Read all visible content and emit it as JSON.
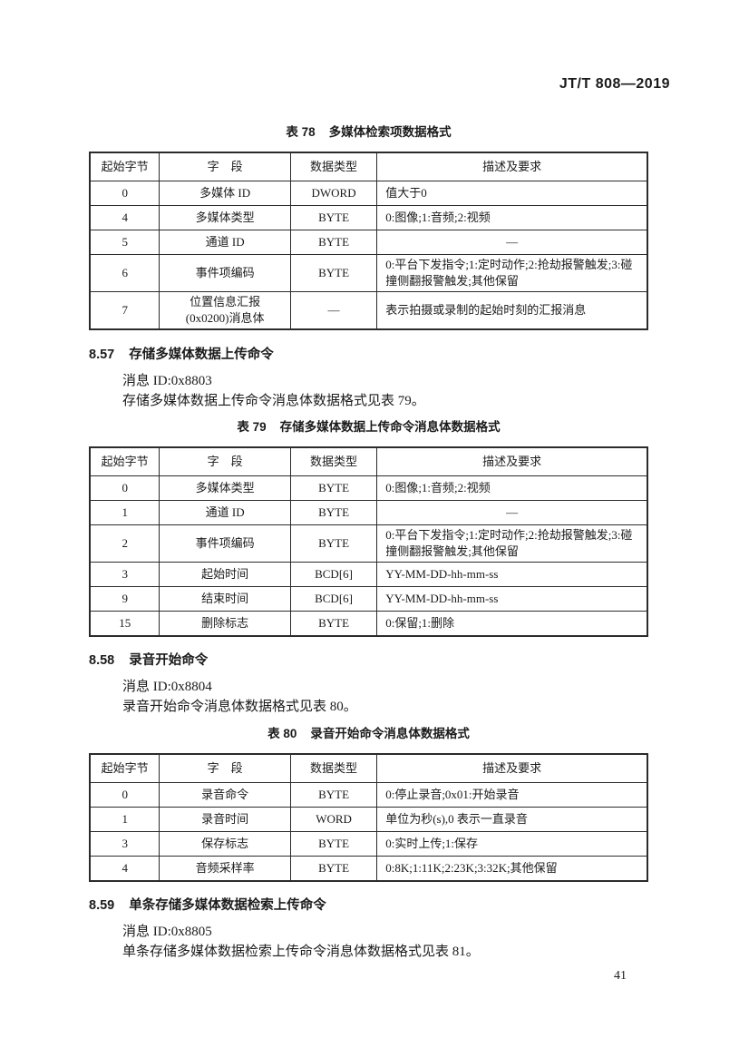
{
  "doc_header": "JT/T 808—2019",
  "page_number": "41",
  "table78": {
    "label": "表 78",
    "title": "多媒体检索项数据格式",
    "headers": [
      "起始字节",
      "字　段",
      "数据类型",
      "描述及要求"
    ],
    "rows": [
      [
        "0",
        "多媒体 ID",
        "DWORD",
        "值大于0"
      ],
      [
        "4",
        "多媒体类型",
        "BYTE",
        "0:图像;1:音频;2:视频"
      ],
      [
        "5",
        "通道 ID",
        "BYTE",
        "—"
      ],
      [
        "6",
        "事件项编码",
        "BYTE",
        "0:平台下发指令;1:定时动作;2:抢劫报警触发;3:碰撞侧翻报警触发;其他保留"
      ],
      [
        "7",
        "位置信息汇报\n(0x0200)消息体",
        "—",
        "表示拍摄或录制的起始时刻的汇报消息"
      ]
    ]
  },
  "sec857": {
    "number": "8.57",
    "title": "存储多媒体数据上传命令",
    "paragraphs": [
      "消息 ID:0x8803",
      "存储多媒体数据上传命令消息体数据格式见表 79。"
    ]
  },
  "table79": {
    "label": "表 79",
    "title": "存储多媒体数据上传命令消息体数据格式",
    "headers": [
      "起始字节",
      "字　段",
      "数据类型",
      "描述及要求"
    ],
    "rows": [
      [
        "0",
        "多媒体类型",
        "BYTE",
        "0:图像;1:音频;2:视频"
      ],
      [
        "1",
        "通道 ID",
        "BYTE",
        "—"
      ],
      [
        "2",
        "事件项编码",
        "BYTE",
        "0:平台下发指令;1:定时动作;2:抢劫报警触发;3:碰撞侧翻报警触发;其他保留"
      ],
      [
        "3",
        "起始时间",
        "BCD[6]",
        "YY-MM-DD-hh-mm-ss"
      ],
      [
        "9",
        "结束时间",
        "BCD[6]",
        "YY-MM-DD-hh-mm-ss"
      ],
      [
        "15",
        "删除标志",
        "BYTE",
        "0:保留;1:删除"
      ]
    ]
  },
  "sec858": {
    "number": "8.58",
    "title": "录音开始命令",
    "paragraphs": [
      "消息 ID:0x8804",
      "录音开始命令消息体数据格式见表 80。"
    ]
  },
  "table80": {
    "label": "表 80",
    "title": "录音开始命令消息体数据格式",
    "headers": [
      "起始字节",
      "字　段",
      "数据类型",
      "描述及要求"
    ],
    "rows": [
      [
        "0",
        "录音命令",
        "BYTE",
        "0:停止录音;0x01:开始录音"
      ],
      [
        "1",
        "录音时间",
        "WORD",
        "单位为秒(s),0 表示一直录音"
      ],
      [
        "3",
        "保存标志",
        "BYTE",
        "0:实时上传;1:保存"
      ],
      [
        "4",
        "音频采样率",
        "BYTE",
        "0:8K;1:11K;2:23K;3:32K;其他保留"
      ]
    ]
  },
  "sec859": {
    "number": "8.59",
    "title": "单条存储多媒体数据检索上传命令",
    "paragraphs": [
      "消息 ID:0x8805",
      "单条存储多媒体数据检索上传命令消息体数据格式见表 81。"
    ]
  }
}
